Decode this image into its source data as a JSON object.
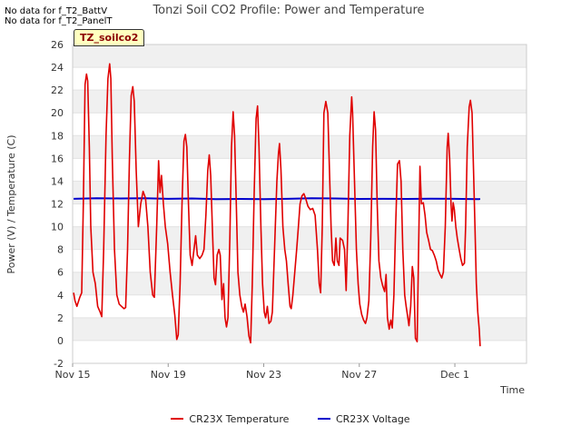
{
  "notices": [
    "No data for f_T2_BattV",
    "No data for f_T2_PanelT"
  ],
  "badge": "TZ_soilco2",
  "colors": {
    "temperature": "#e00000",
    "voltage": "#0000cc"
  },
  "chart_data": {
    "type": "line",
    "title": "Tonzi Soil CO2 Profile: Power and Temperature",
    "xlabel": "Time",
    "ylabel": "Power (V) / Temperature (C)",
    "xlim": [
      0,
      19
    ],
    "ylim": [
      -2,
      26
    ],
    "yticks": [
      -2,
      0,
      2,
      4,
      6,
      8,
      10,
      12,
      14,
      16,
      18,
      20,
      22,
      24,
      26
    ],
    "xticks": [
      {
        "x": 0,
        "label": "Nov 15"
      },
      {
        "x": 4,
        "label": "Nov 19"
      },
      {
        "x": 8,
        "label": "Nov 23"
      },
      {
        "x": 12,
        "label": "Nov 27"
      },
      {
        "x": 16,
        "label": "Dec 1"
      }
    ],
    "x_units": "days since Nov 15",
    "grid": true,
    "legend_position": "bottom",
    "series": [
      {
        "name": "CR23X Temperature",
        "color": "#e00000",
        "points": [
          [
            0.04,
            4.2
          ],
          [
            0.1,
            3.5
          ],
          [
            0.18,
            3.0
          ],
          [
            0.3,
            3.8
          ],
          [
            0.38,
            4.2
          ],
          [
            0.45,
            12
          ],
          [
            0.52,
            22.5
          ],
          [
            0.58,
            23.4
          ],
          [
            0.63,
            22.8
          ],
          [
            0.7,
            17
          ],
          [
            0.76,
            10
          ],
          [
            0.85,
            6
          ],
          [
            0.95,
            5
          ],
          [
            1.05,
            3
          ],
          [
            1.15,
            2.5
          ],
          [
            1.22,
            2.1
          ],
          [
            1.3,
            8
          ],
          [
            1.4,
            18
          ],
          [
            1.48,
            23
          ],
          [
            1.55,
            24.3
          ],
          [
            1.6,
            23
          ],
          [
            1.66,
            16
          ],
          [
            1.75,
            8
          ],
          [
            1.85,
            4
          ],
          [
            1.95,
            3.2
          ],
          [
            2.05,
            3
          ],
          [
            2.15,
            2.8
          ],
          [
            2.22,
            2.9
          ],
          [
            2.3,
            8
          ],
          [
            2.38,
            16
          ],
          [
            2.45,
            21.5
          ],
          [
            2.52,
            22.3
          ],
          [
            2.58,
            21
          ],
          [
            2.66,
            15
          ],
          [
            2.75,
            10
          ],
          [
            2.85,
            12
          ],
          [
            2.95,
            13.1
          ],
          [
            3.05,
            12.5
          ],
          [
            3.15,
            10
          ],
          [
            3.25,
            6
          ],
          [
            3.35,
            4
          ],
          [
            3.42,
            3.8
          ],
          [
            3.52,
            10
          ],
          [
            3.6,
            15.8
          ],
          [
            3.66,
            13
          ],
          [
            3.72,
            14.5
          ],
          [
            3.8,
            12
          ],
          [
            3.88,
            10
          ],
          [
            3.98,
            8.5
          ],
          [
            4.08,
            6
          ],
          [
            4.18,
            4
          ],
          [
            4.28,
            2.2
          ],
          [
            4.36,
            0.1
          ],
          [
            4.42,
            0.5
          ],
          [
            4.5,
            5
          ],
          [
            4.58,
            12
          ],
          [
            4.66,
            17.5
          ],
          [
            4.72,
            18.1
          ],
          [
            4.78,
            17
          ],
          [
            4.85,
            12
          ],
          [
            4.92,
            7.5
          ],
          [
            5.0,
            6.6
          ],
          [
            5.08,
            8
          ],
          [
            5.15,
            9.2
          ],
          [
            5.22,
            7.5
          ],
          [
            5.32,
            7.2
          ],
          [
            5.42,
            7.5
          ],
          [
            5.5,
            8
          ],
          [
            5.58,
            11
          ],
          [
            5.66,
            15
          ],
          [
            5.72,
            16.3
          ],
          [
            5.78,
            14.5
          ],
          [
            5.85,
            10
          ],
          [
            5.92,
            5.5
          ],
          [
            5.98,
            4.9
          ],
          [
            6.05,
            7.5
          ],
          [
            6.12,
            8
          ],
          [
            6.18,
            7.5
          ],
          [
            6.25,
            3.6
          ],
          [
            6.32,
            5
          ],
          [
            6.38,
            2
          ],
          [
            6.44,
            1.2
          ],
          [
            6.5,
            2
          ],
          [
            6.58,
            9
          ],
          [
            6.65,
            17
          ],
          [
            6.72,
            20.1
          ],
          [
            6.78,
            18
          ],
          [
            6.85,
            12
          ],
          [
            6.92,
            6
          ],
          [
            7.0,
            4
          ],
          [
            7.08,
            3
          ],
          [
            7.15,
            2.5
          ],
          [
            7.22,
            3.2
          ],
          [
            7.3,
            2.1
          ],
          [
            7.38,
            0.4
          ],
          [
            7.45,
            -0.2
          ],
          [
            7.52,
            5
          ],
          [
            7.6,
            13
          ],
          [
            7.68,
            19.5
          ],
          [
            7.74,
            20.6
          ],
          [
            7.8,
            17
          ],
          [
            7.88,
            10
          ],
          [
            7.95,
            5
          ],
          [
            8.02,
            2.5
          ],
          [
            8.08,
            2
          ],
          [
            8.15,
            3
          ],
          [
            8.22,
            1.5
          ],
          [
            8.3,
            1.7
          ],
          [
            8.36,
            2.5
          ],
          [
            8.45,
            8
          ],
          [
            8.55,
            14
          ],
          [
            8.62,
            16.5
          ],
          [
            8.66,
            17.3
          ],
          [
            8.72,
            15
          ],
          [
            8.8,
            10
          ],
          [
            8.88,
            8
          ],
          [
            8.95,
            7
          ],
          [
            9.02,
            5
          ],
          [
            9.1,
            3
          ],
          [
            9.15,
            2.8
          ],
          [
            9.22,
            4
          ],
          [
            9.3,
            6
          ],
          [
            9.38,
            8
          ],
          [
            9.45,
            10
          ],
          [
            9.52,
            12
          ],
          [
            9.6,
            12.7
          ],
          [
            9.68,
            12.9
          ],
          [
            9.75,
            12.5
          ],
          [
            9.85,
            11.8
          ],
          [
            9.95,
            11.5
          ],
          [
            10.05,
            11.6
          ],
          [
            10.15,
            11
          ],
          [
            10.25,
            8
          ],
          [
            10.32,
            5
          ],
          [
            10.38,
            4.2
          ],
          [
            10.45,
            10
          ],
          [
            10.52,
            20
          ],
          [
            10.6,
            21
          ],
          [
            10.68,
            20
          ],
          [
            10.75,
            15
          ],
          [
            10.82,
            10
          ],
          [
            10.88,
            7
          ],
          [
            10.95,
            6.6
          ],
          [
            11.02,
            9
          ],
          [
            11.08,
            7
          ],
          [
            11.15,
            6.6
          ],
          [
            11.2,
            9
          ],
          [
            11.3,
            8.8
          ],
          [
            11.38,
            8
          ],
          [
            11.45,
            4.4
          ],
          [
            11.52,
            10
          ],
          [
            11.6,
            18
          ],
          [
            11.68,
            21.4
          ],
          [
            11.72,
            20
          ],
          [
            11.8,
            14
          ],
          [
            11.88,
            8
          ],
          [
            11.95,
            5
          ],
          [
            12.02,
            3.2
          ],
          [
            12.1,
            2.3
          ],
          [
            12.18,
            1.8
          ],
          [
            12.26,
            1.5
          ],
          [
            12.32,
            2
          ],
          [
            12.4,
            3.5
          ],
          [
            12.48,
            9
          ],
          [
            12.56,
            17
          ],
          [
            12.62,
            20.1
          ],
          [
            12.68,
            18.5
          ],
          [
            12.75,
            12
          ],
          [
            12.82,
            7
          ],
          [
            12.9,
            5.5
          ],
          [
            12.98,
            4.8
          ],
          [
            13.06,
            4.3
          ],
          [
            13.12,
            5.8
          ],
          [
            13.18,
            2
          ],
          [
            13.25,
            1
          ],
          [
            13.32,
            1.8
          ],
          [
            13.38,
            1.1
          ],
          [
            13.45,
            4
          ],
          [
            13.52,
            10
          ],
          [
            13.6,
            15.5
          ],
          [
            13.68,
            15.8
          ],
          [
            13.75,
            14
          ],
          [
            13.82,
            8
          ],
          [
            13.9,
            4
          ],
          [
            13.96,
            3
          ],
          [
            14.02,
            2.2
          ],
          [
            14.08,
            1.3
          ],
          [
            14.15,
            3
          ],
          [
            14.22,
            6.5
          ],
          [
            14.28,
            5.5
          ],
          [
            14.35,
            0.2
          ],
          [
            14.42,
            -0.1
          ],
          [
            14.48,
            8
          ],
          [
            14.54,
            15.3
          ],
          [
            14.6,
            12
          ],
          [
            14.68,
            12.1
          ],
          [
            14.75,
            11
          ],
          [
            14.82,
            9.5
          ],
          [
            14.9,
            8.8
          ],
          [
            14.98,
            8
          ],
          [
            15.06,
            7.9
          ],
          [
            15.14,
            7.5
          ],
          [
            15.22,
            7
          ],
          [
            15.3,
            6.2
          ],
          [
            15.38,
            5.8
          ],
          [
            15.45,
            5.5
          ],
          [
            15.52,
            6
          ],
          [
            15.6,
            10
          ],
          [
            15.68,
            17
          ],
          [
            15.72,
            18.2
          ],
          [
            15.78,
            16
          ],
          [
            15.84,
            12
          ],
          [
            15.88,
            10.5
          ],
          [
            15.93,
            12.1
          ],
          [
            15.98,
            11.5
          ],
          [
            16.04,
            10
          ],
          [
            16.1,
            9
          ],
          [
            16.18,
            8
          ],
          [
            16.25,
            7.2
          ],
          [
            16.32,
            6.6
          ],
          [
            16.4,
            6.8
          ],
          [
            16.45,
            10
          ],
          [
            16.52,
            17
          ],
          [
            16.6,
            20.5
          ],
          [
            16.65,
            21.1
          ],
          [
            16.72,
            20
          ],
          [
            16.78,
            15
          ],
          [
            16.84,
            10
          ],
          [
            16.9,
            5
          ],
          [
            16.96,
            2.5
          ],
          [
            17.02,
            1
          ],
          [
            17.06,
            -0.5
          ]
        ]
      },
      {
        "name": "CR23X Voltage",
        "color": "#0000cc",
        "points": [
          [
            0.04,
            12.45
          ],
          [
            1,
            12.5
          ],
          [
            2,
            12.48
          ],
          [
            3,
            12.5
          ],
          [
            4,
            12.45
          ],
          [
            5,
            12.48
          ],
          [
            6,
            12.42
          ],
          [
            7,
            12.44
          ],
          [
            8,
            12.42
          ],
          [
            9,
            12.45
          ],
          [
            10,
            12.5
          ],
          [
            11,
            12.48
          ],
          [
            12,
            12.44
          ],
          [
            13,
            12.45
          ],
          [
            14,
            12.44
          ],
          [
            15,
            12.46
          ],
          [
            16,
            12.45
          ],
          [
            17,
            12.42
          ],
          [
            17.06,
            12.44
          ]
        ]
      }
    ]
  }
}
